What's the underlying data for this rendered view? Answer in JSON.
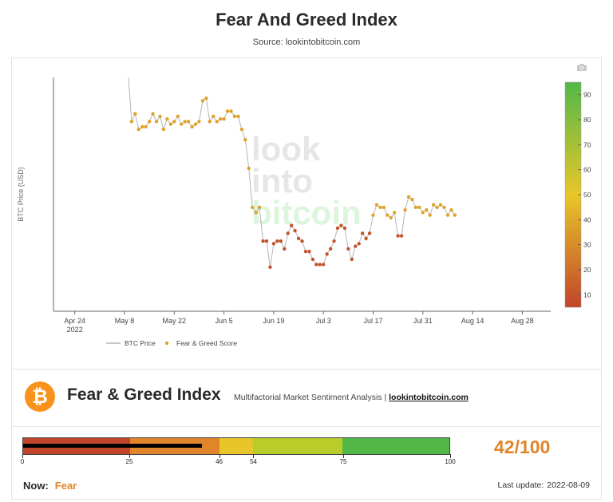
{
  "page": {
    "title": "Fear And Greed Index",
    "source": "Source: lookintobitcoin.com"
  },
  "colors": {
    "line": "#b5b5b5",
    "fear_dot": "#c0542a",
    "greed_dot": "#e0a22a",
    "colorbar_top": "#52b848",
    "colorbar_mid": "#e8c62a",
    "colorbar_bottom": "#c0452a",
    "accent": "#e0852a"
  },
  "watermark": [
    "look",
    "into",
    "bitcoin"
  ],
  "chart_data": {
    "type": "scatter",
    "title": "",
    "ylabel": "BTC Price (USD)",
    "x_tick_labels": [
      "Apr 24\n2022",
      "May 8",
      "May 22",
      "Jun 5",
      "Jun 19",
      "Jul 3",
      "Jul 17",
      "Jul 31",
      "Aug 14",
      "Aug 28"
    ],
    "x_tick_dates": [
      "2022-04-24",
      "2022-05-08",
      "2022-05-22",
      "2022-06-05",
      "2022-06-19",
      "2022-07-03",
      "2022-07-17",
      "2022-07-31",
      "2022-08-14",
      "2022-08-28"
    ],
    "xlim": [
      "2022-04-18",
      "2022-09-05"
    ],
    "ylim": [
      5,
      95
    ],
    "colorbar": {
      "ticks": [
        10,
        20,
        30,
        40,
        50,
        60,
        70,
        80,
        90
      ],
      "range": [
        5,
        95
      ]
    },
    "legend": {
      "position": "bottom",
      "entries": [
        "BTC Price",
        "Fear & Greed Score"
      ]
    },
    "series": [
      {
        "name": "Fear & Greed Score",
        "dates": [
          "2022-05-10",
          "2022-05-11",
          "2022-05-12",
          "2022-05-13",
          "2022-05-14",
          "2022-05-15",
          "2022-05-16",
          "2022-05-17",
          "2022-05-18",
          "2022-05-19",
          "2022-05-20",
          "2022-05-21",
          "2022-05-22",
          "2022-05-23",
          "2022-05-24",
          "2022-05-25",
          "2022-05-26",
          "2022-05-27",
          "2022-05-28",
          "2022-05-29",
          "2022-05-30",
          "2022-05-31",
          "2022-06-01",
          "2022-06-02",
          "2022-06-03",
          "2022-06-04",
          "2022-06-05",
          "2022-06-06",
          "2022-06-07",
          "2022-06-08",
          "2022-06-09",
          "2022-06-10",
          "2022-06-11",
          "2022-06-12",
          "2022-06-13",
          "2022-06-14",
          "2022-06-15",
          "2022-06-16",
          "2022-06-17",
          "2022-06-18",
          "2022-06-19",
          "2022-06-20",
          "2022-06-21",
          "2022-06-22",
          "2022-06-23",
          "2022-06-24",
          "2022-06-25",
          "2022-06-26",
          "2022-06-27",
          "2022-06-28",
          "2022-06-29",
          "2022-06-30",
          "2022-07-01",
          "2022-07-02",
          "2022-07-03",
          "2022-07-04",
          "2022-07-05",
          "2022-07-06",
          "2022-07-07",
          "2022-07-08",
          "2022-07-09",
          "2022-07-10",
          "2022-07-11",
          "2022-07-12",
          "2022-07-13",
          "2022-07-14",
          "2022-07-15",
          "2022-07-16",
          "2022-07-17",
          "2022-07-18",
          "2022-07-19",
          "2022-07-20",
          "2022-07-21",
          "2022-07-22",
          "2022-07-23",
          "2022-07-24",
          "2022-07-25",
          "2022-07-26",
          "2022-07-27",
          "2022-07-28",
          "2022-07-29",
          "2022-07-30",
          "2022-07-31",
          "2022-08-01",
          "2022-08-02",
          "2022-08-03",
          "2022-08-04",
          "2022-08-05",
          "2022-08-06",
          "2022-08-07",
          "2022-08-08",
          "2022-08-09"
        ],
        "values": [
          78,
          81,
          75,
          76,
          76,
          78,
          81,
          78,
          80,
          75,
          79,
          77,
          78,
          80,
          77,
          78,
          78,
          76,
          77,
          78,
          86,
          87,
          78,
          80,
          78,
          79,
          79,
          82,
          82,
          80,
          80,
          75,
          71,
          60,
          45,
          43,
          45,
          32,
          32,
          22,
          31,
          32,
          32,
          29,
          35,
          38,
          36,
          33,
          32,
          28,
          28,
          25,
          23,
          23,
          23,
          27,
          29,
          32,
          37,
          38,
          37,
          29,
          25,
          30,
          31,
          35,
          33,
          35,
          42,
          46,
          45,
          45,
          42,
          41,
          43,
          34,
          34,
          44,
          49,
          48,
          45,
          45,
          43,
          44,
          42,
          46,
          45,
          46,
          45,
          42,
          44,
          42
        ]
      }
    ]
  },
  "widget": {
    "logo": "₿",
    "title": "Fear & Greed Index",
    "subtitle": "Multifactorial Market Sentiment Analysis |",
    "link": "lookintobitcoin.com",
    "gauge": {
      "value": 42,
      "segments": [
        {
          "from": 0,
          "to": 25,
          "color": "#c0452a"
        },
        {
          "from": 25,
          "to": 46,
          "color": "#e0852a"
        },
        {
          "from": 46,
          "to": 54,
          "color": "#e8c62a"
        },
        {
          "from": 54,
          "to": 75,
          "color": "#b8cc2a"
        },
        {
          "from": 75,
          "to": 100,
          "color": "#52b848"
        }
      ],
      "tick_labels": [
        "0",
        "25",
        "46",
        "54",
        "75",
        "100"
      ]
    },
    "score": "42/100",
    "now_label": "Now:",
    "now_value": "Fear",
    "last_update_label": "Last update:",
    "last_update_date": "2022-08-09"
  }
}
